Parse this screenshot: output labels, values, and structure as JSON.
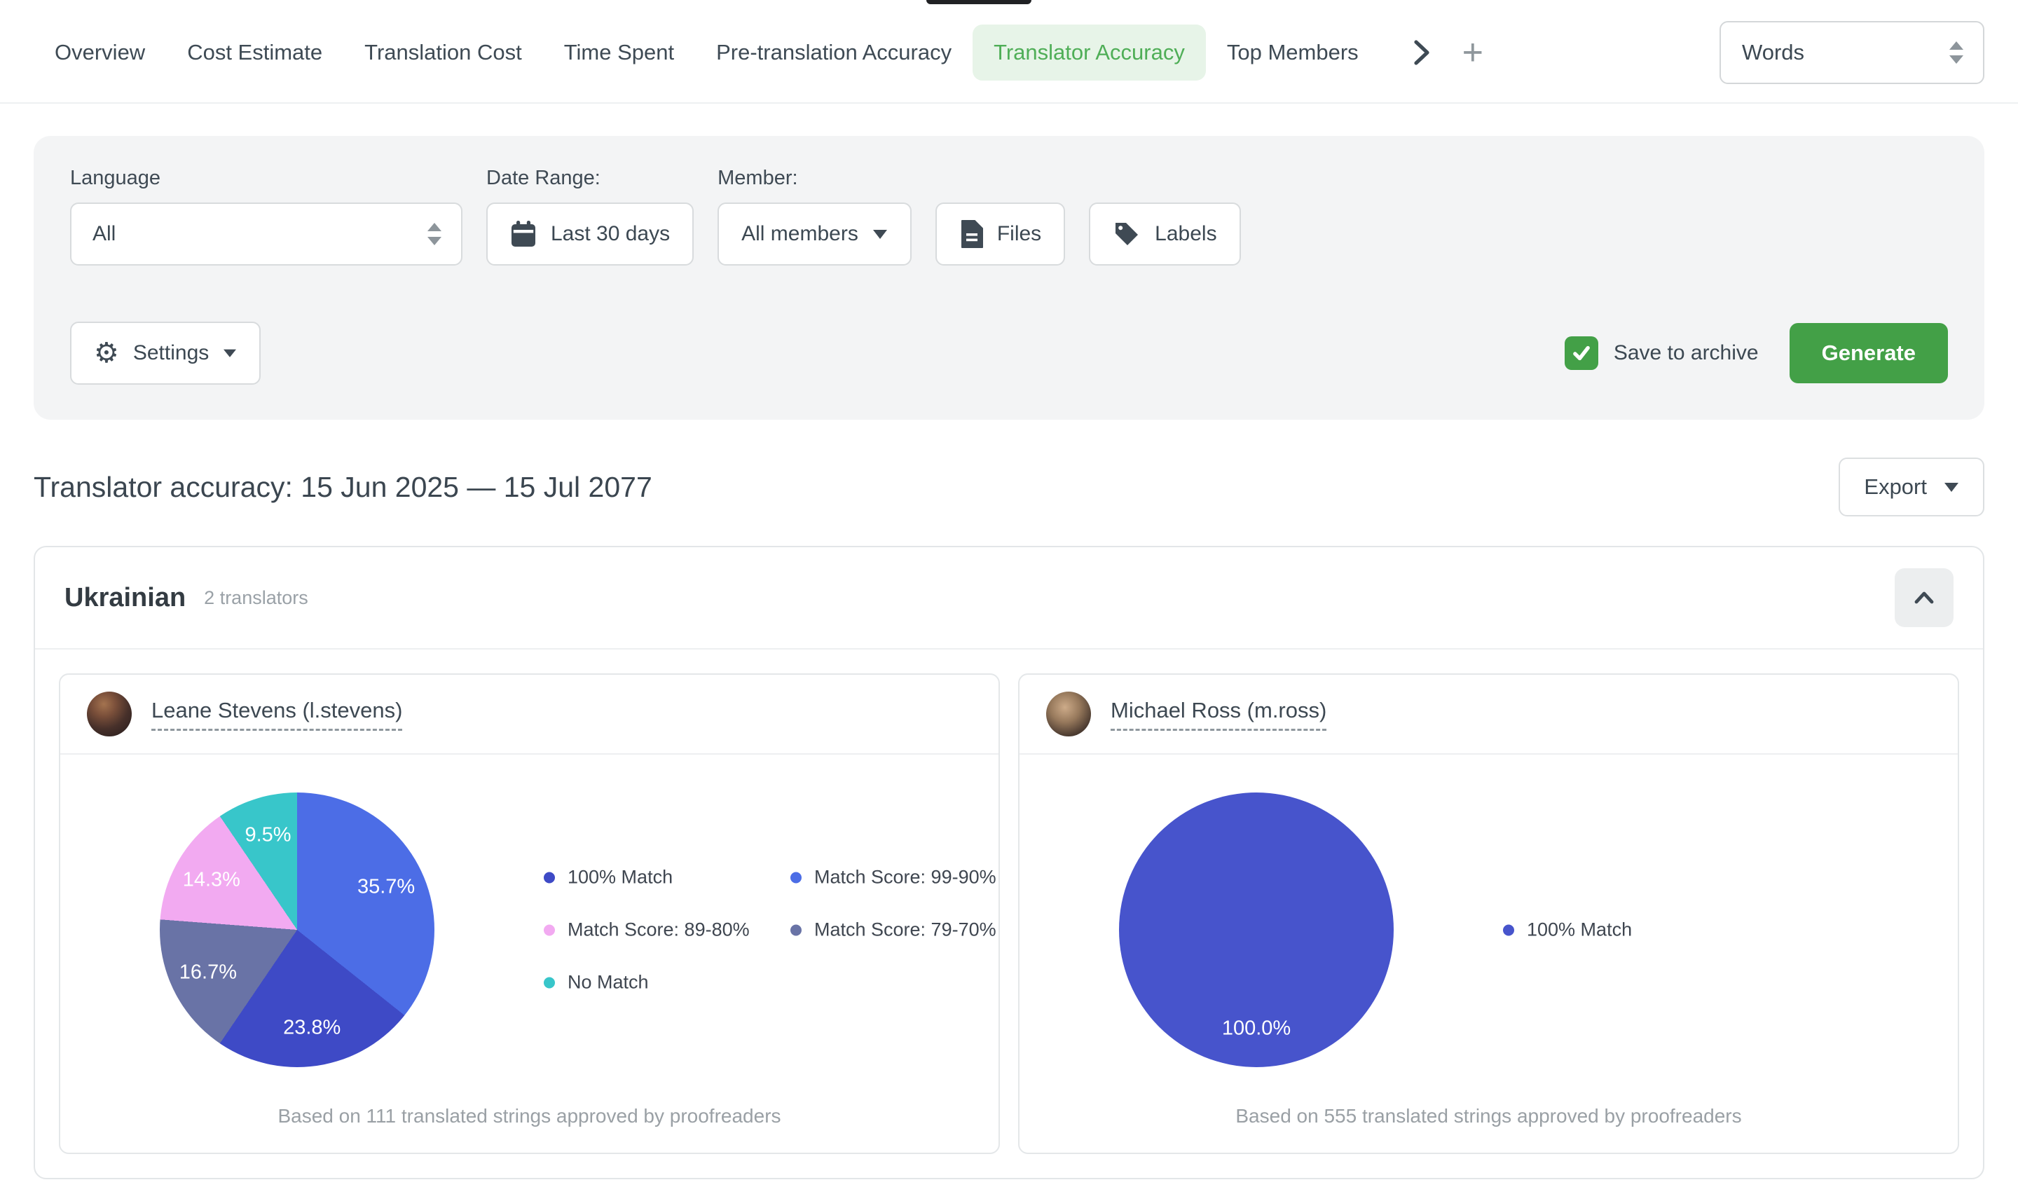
{
  "nav": {
    "tabs": [
      {
        "label": "Overview",
        "active": false
      },
      {
        "label": "Cost Estimate",
        "active": false
      },
      {
        "label": "Translation Cost",
        "active": false
      },
      {
        "label": "Time Spent",
        "active": false
      },
      {
        "label": "Pre-translation Accuracy",
        "active": false
      },
      {
        "label": "Translator Accuracy",
        "active": true
      },
      {
        "label": "Top Members",
        "active": false
      }
    ],
    "unit_select_value": "Words",
    "active_text_color": "#4FAE57",
    "active_bg_color": "#E7F4E8"
  },
  "filters": {
    "language_label": "Language",
    "language_value": "All",
    "date_range_label": "Date Range:",
    "date_range_value": "Last 30 days",
    "member_label": "Member:",
    "member_value": "All members",
    "files_button": "Files",
    "labels_button": "Labels",
    "settings_button": "Settings",
    "save_to_archive_label": "Save to archive",
    "save_to_archive_checked": true,
    "generate_button": "Generate",
    "accent_green": "#43A047"
  },
  "report": {
    "title": "Translator accuracy: 15 Jun 2025 — 15 Jul 2077",
    "export_button": "Export"
  },
  "section": {
    "language": "Ukrainian",
    "translators_count": "2 translators"
  },
  "cards": [
    {
      "translator": "Leane Stevens (l.stevens)",
      "footnote": "Based on 111 translated strings approved by proofreaders",
      "chart_data": {
        "type": "pie",
        "label_format": "percent",
        "legend_position": "right",
        "series": [
          {
            "label": "Match Score: 99-90%",
            "value": 35.7,
            "color": "#4C6DE6"
          },
          {
            "label": "100% Match",
            "value": 23.8,
            "color": "#3E4AC6"
          },
          {
            "label": "Match Score: 79-70%",
            "value": 16.7,
            "color": "#6973A6"
          },
          {
            "label": "Match Score: 89-80%",
            "value": 14.3,
            "color": "#F2AAF1"
          },
          {
            "label": "No Match",
            "value": 9.5,
            "color": "#38C6CA"
          }
        ],
        "legend_order": [
          "100% Match",
          "Match Score: 99-90%",
          "Match Score: 89-80%",
          "Match Score: 79-70%",
          "No Match"
        ]
      }
    },
    {
      "translator": "Michael Ross (m.ross)",
      "footnote": "Based on 555 translated strings approved by proofreaders",
      "chart_data": {
        "type": "pie",
        "label_format": "percent",
        "legend_position": "right",
        "series": [
          {
            "label": "100% Match",
            "value": 100.0,
            "color": "#4754CC"
          }
        ],
        "legend_order": [
          "100% Match"
        ]
      }
    }
  ]
}
